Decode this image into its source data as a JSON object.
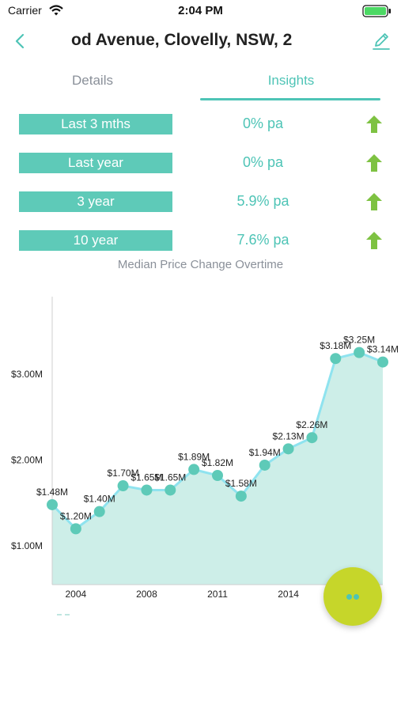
{
  "status_bar": {
    "carrier": "Carrier",
    "time": "2:04 PM"
  },
  "nav": {
    "title": "od Avenue, Clovelly, NSW, 2"
  },
  "tabs": {
    "details": "Details",
    "insights": "Insights",
    "active": "Insights"
  },
  "growth": [
    {
      "period": "Last 3 mths",
      "rate": "0% pa",
      "trend": "up"
    },
    {
      "period": "Last year",
      "rate": "0% pa",
      "trend": "up"
    },
    {
      "period": "3 year",
      "rate": "5.9% pa",
      "trend": "up"
    },
    {
      "period": "10 year",
      "rate": "7.6% pa",
      "trend": "up"
    }
  ],
  "chart_title": "Median Price Change Overtime",
  "colors": {
    "accent": "#4ec4b6",
    "bar": "#5ecab8",
    "arrow": "#7ec242",
    "area": "#cdeee8",
    "line": "#8fe3ef",
    "fab": "#c6d62a"
  },
  "chart_data": {
    "type": "area",
    "title": "Median Price Change Overtime",
    "xlabel": "",
    "ylabel": "",
    "x_ticks": [
      "2004",
      "2008",
      "2011",
      "2014"
    ],
    "y_ticks": [
      "$1.00M",
      "$2.00M",
      "$3.00M"
    ],
    "ylim": [
      0.55,
      3.9
    ],
    "series": [
      {
        "values": [
          1.48,
          1.2,
          1.4,
          1.7,
          1.65,
          1.65,
          1.89,
          1.82,
          1.58,
          1.94,
          2.13,
          2.26,
          3.18,
          3.25,
          3.14
        ],
        "labels": [
          "$1.48M",
          "$1.20M",
          "$1.40M",
          "$1.70M",
          "$1.65M",
          "$1.65M",
          "$1.89M",
          "$1.82M",
          "$1.58M",
          "$1.94M",
          "$2.13M",
          "$2.26M",
          "$3.18M",
          "$3.25M",
          "$3.14M"
        ]
      }
    ]
  }
}
